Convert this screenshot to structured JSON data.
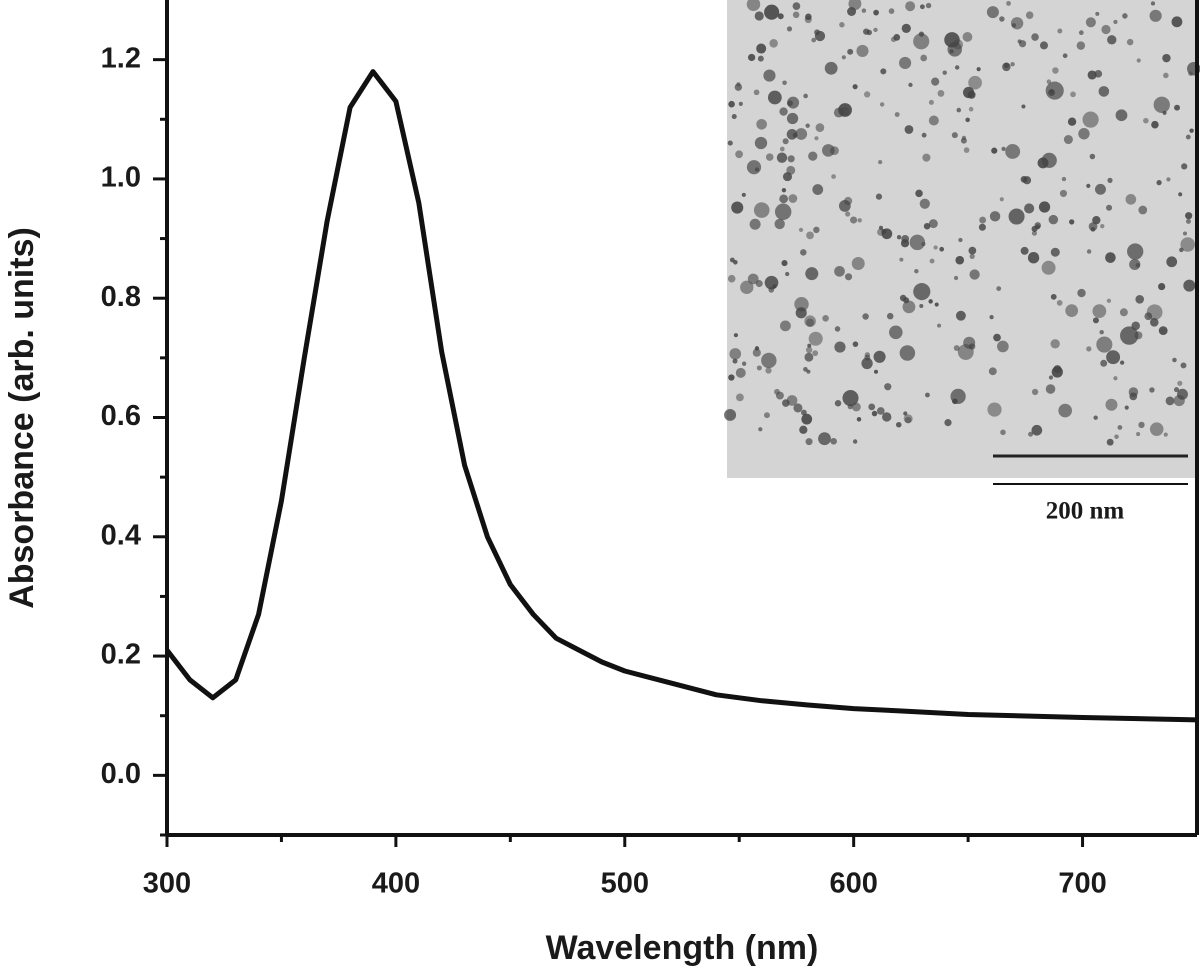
{
  "chart_data": {
    "type": "line",
    "x_label": "Wavelength (nm)",
    "y_label": "Absorbance (arb. units)",
    "annotations": [
      "200 nm"
    ],
    "xlim": [
      300,
      750
    ],
    "ylim": [
      -0.1,
      1.3
    ],
    "xticks": [
      300,
      400,
      500,
      600,
      700
    ],
    "xminorticks": [
      350,
      450,
      550,
      650
    ],
    "yticks": [
      {
        "value": 0,
        "label": "0.0"
      },
      0.2,
      0.4,
      0.6,
      0.8,
      {
        "value": 1,
        "label": "1.0"
      },
      1.2
    ],
    "yminorticks": [
      -0.1,
      0.1,
      0.3,
      0.5,
      0.7,
      0.9,
      1.1
    ],
    "series": [
      {
        "name": "Absorbance",
        "color": "#111111",
        "x": [
          300,
          310,
          320,
          330,
          340,
          350,
          360,
          370,
          380,
          390,
          400,
          410,
          420,
          430,
          440,
          450,
          460,
          470,
          480,
          490,
          500,
          520,
          540,
          560,
          580,
          600,
          620,
          650,
          700,
          750
        ],
        "values": [
          0.21,
          0.16,
          0.13,
          0.16,
          0.27,
          0.46,
          0.7,
          0.93,
          1.12,
          1.18,
          1.13,
          0.96,
          0.71,
          0.52,
          0.4,
          0.32,
          0.27,
          0.23,
          0.21,
          0.19,
          0.175,
          0.155,
          0.135,
          0.125,
          0.118,
          0.112,
          0.108,
          0.102,
          0.097,
          0.093
        ]
      }
    ]
  }
}
